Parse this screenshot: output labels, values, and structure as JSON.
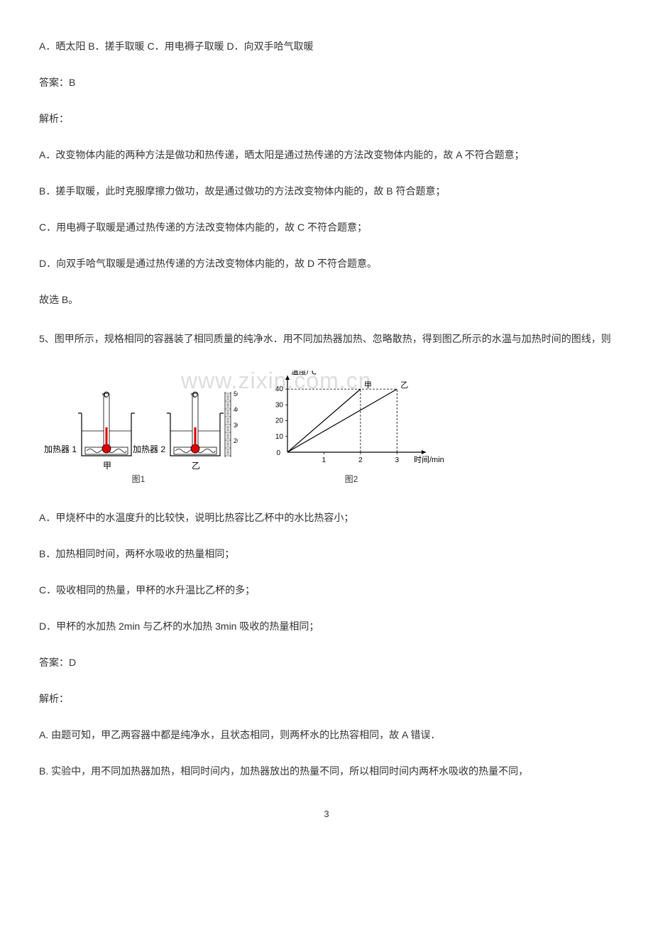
{
  "q4": {
    "options_line": "A．晒太阳 B．搓手取暖 C．用电褥子取暖 D．向双手哈气取暖",
    "answer": "答案：B",
    "explain_label": "解析：",
    "a": "A．改变物体内能的两种方法是做功和热传递，晒太阳是通过热传递的方法改变物体内能的，故 A 不符合题意；",
    "b": "B．搓手取暖，此时克服摩擦力做功，故是通过做功的方法改变物体内能的，故 B 符合题意；",
    "c": "C．用电褥子取暖是通过热传递的方法改变物体内能的，故 C 不符合题意；",
    "d": "D．向双手哈气取暖是通过热传递的方法改变物体内能的，故 D 不符合题意。",
    "final": "故选 B。"
  },
  "q5": {
    "stem": "5、图甲所示，规格相同的容器装了相同质量的纯净水．用不同加热器加热、忽略散热，得到图乙所示的水温与加热时间的图线，则",
    "figure": {
      "beaker1_label": "加热器 1",
      "beaker1_caption": "甲",
      "beaker2_label": "加热器 2",
      "beaker2_caption": "乙",
      "fig1_label": "图1",
      "fig2_label": "图2",
      "thermo_scale": [
        "50",
        "40",
        "30",
        "20"
      ],
      "temp_unit": "℃",
      "chart": {
        "type": "line",
        "y_axis_label": "温度/℃",
        "x_axis_label": "时间/min",
        "y_ticks": [
          0,
          10,
          20,
          30,
          40
        ],
        "x_ticks": [
          1,
          2,
          3
        ],
        "series": [
          {
            "name": "甲",
            "color": "#000000",
            "points": [
              [
                0,
                0
              ],
              [
                2,
                40
              ]
            ],
            "dash_at_x": 2,
            "dash_at_y": 40
          },
          {
            "name": "乙",
            "color": "#000000",
            "points": [
              [
                0,
                0
              ],
              [
                3,
                40
              ]
            ],
            "dash_at_x": 3,
            "dash_at_y": 40
          }
        ],
        "background": "#ffffff",
        "axis_color": "#000000"
      },
      "watermark": "www.zixin.com.cn"
    },
    "opt_a": "A．甲烧杯中的水温度升的比较快，说明比热容比乙杯中的水比热容小；",
    "opt_b": "B．加热相同时间，两杯水吸收的热量相同；",
    "opt_c": "C．吸收相同的热量，甲杯的水升温比乙杯的多；",
    "opt_d": "D．甲杯的水加热 2min 与乙杯的水加热 3min 吸收的热量相同；",
    "answer": "答案：D",
    "explain_label": "解析：",
    "exp_a": "A. 由题可知，甲乙两容器中都是纯净水，且状态相同，则两杯水的比热容相同，故 A 错误．",
    "exp_b": "B. 实验中，用不同加热器加热，相同时间内，加热器放出的热量不同，所以相同时间内两杯水吸收的热量不同，"
  },
  "page_number": "3"
}
